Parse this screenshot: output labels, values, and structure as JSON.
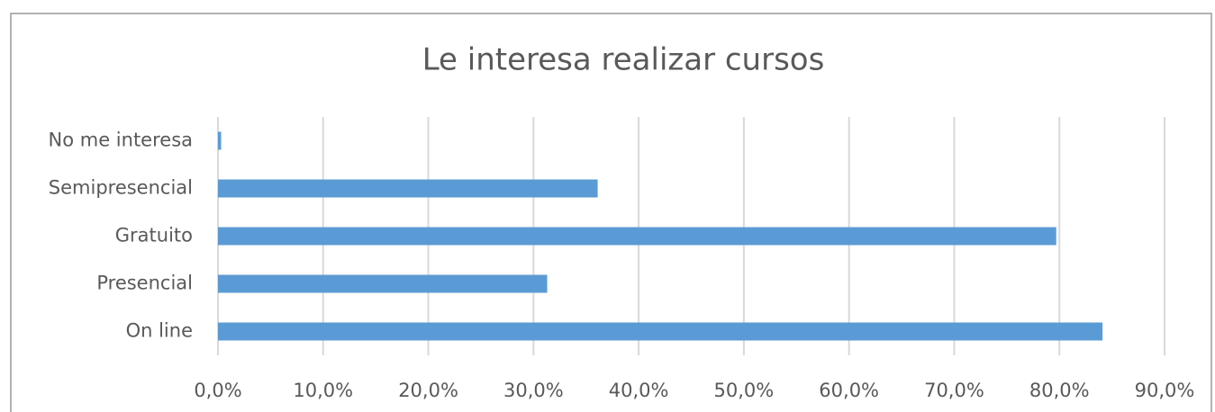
{
  "chart_data": {
    "type": "hbar",
    "title": "Le interesa realizar cursos",
    "categories": [
      "No me interesa",
      "Semipresencial",
      "Gratuito",
      "Presencial",
      "On line"
    ],
    "values": [
      0.3,
      36.1,
      79.7,
      31.3,
      84.1
    ],
    "color": "#5b9bd5",
    "xlim": [
      0,
      90
    ],
    "xticks": [
      {
        "value": 0,
        "label": "0,0%"
      },
      {
        "value": 10,
        "label": "10,0%"
      },
      {
        "value": 20,
        "label": "20,0%"
      },
      {
        "value": 30,
        "label": "30,0%"
      },
      {
        "value": 40,
        "label": "40,0%"
      },
      {
        "value": 50,
        "label": "50,0%"
      },
      {
        "value": 60,
        "label": "60,0%"
      },
      {
        "value": 70,
        "label": "70,0%"
      },
      {
        "value": 80,
        "label": "80,0%"
      },
      {
        "value": 90,
        "label": "90,0%"
      }
    ],
    "grid": true
  }
}
